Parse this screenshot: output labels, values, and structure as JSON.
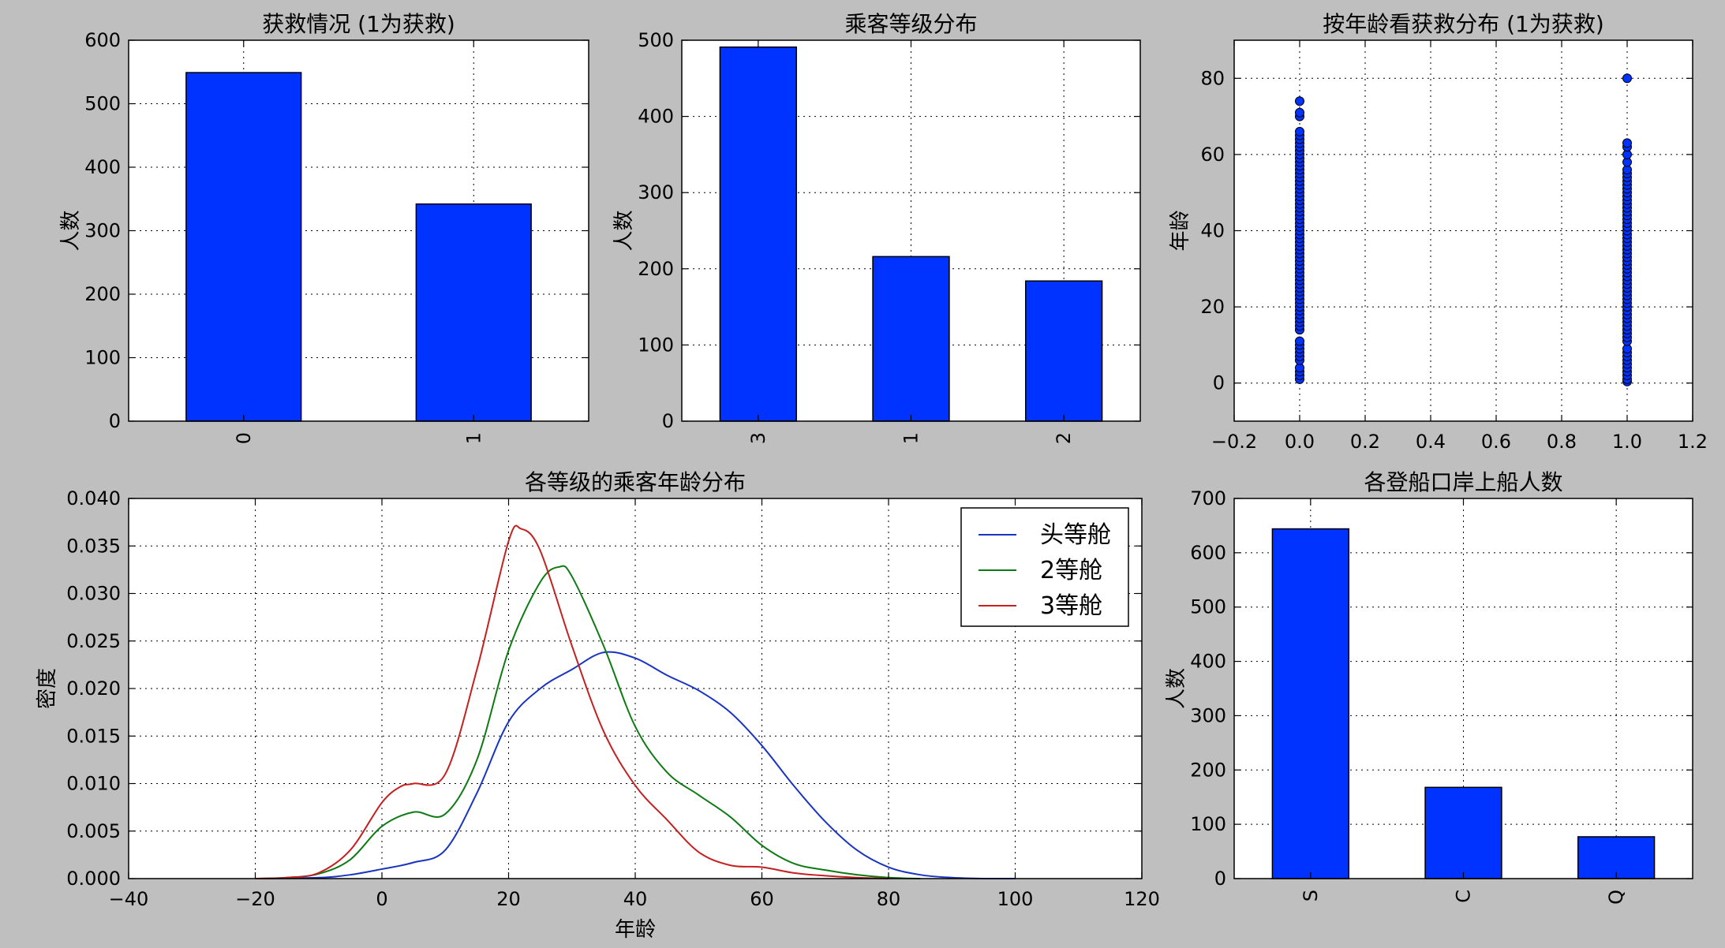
{
  "chart_data": [
    {
      "type": "bar",
      "title": "获救情况 (1为获救)",
      "ylabel": "人数",
      "xlabel": "",
      "categories": [
        "0",
        "1"
      ],
      "values": [
        549,
        342
      ],
      "ylim": [
        0,
        600
      ],
      "yticks": [
        0,
        100,
        200,
        300,
        400,
        500,
        600
      ],
      "grid": true,
      "color": "#0033ff"
    },
    {
      "type": "bar",
      "title": "乘客等级分布",
      "ylabel": "人数",
      "xlabel": "",
      "categories": [
        "3",
        "1",
        "2"
      ],
      "values": [
        491,
        216,
        184
      ],
      "ylim": [
        0,
        500
      ],
      "yticks": [
        0,
        100,
        200,
        300,
        400,
        500
      ],
      "grid": true,
      "color": "#0033ff"
    },
    {
      "type": "scatter",
      "title": "按年龄看获救分布 (1为获救)",
      "ylabel": "年龄",
      "xlabel": "",
      "xlim": [
        -0.2,
        1.2
      ],
      "ylim": [
        -10,
        90
      ],
      "xticks": [
        -0.2,
        0.0,
        0.2,
        0.4,
        0.6,
        0.8,
        1.0,
        1.2
      ],
      "xtick_labels": [
        "−0.2",
        "0.0",
        "0.2",
        "0.4",
        "0.6",
        "0.8",
        "1.0",
        "1.2"
      ],
      "yticks": [
        0,
        20,
        40,
        60,
        80
      ],
      "grid": true,
      "color": "#0033ff",
      "series": [
        {
          "x": 0,
          "y": [
            1,
            2,
            3,
            4,
            6,
            7,
            8,
            9,
            10,
            11,
            14,
            15,
            16,
            17,
            18,
            19,
            20,
            21,
            22,
            23,
            24,
            25,
            26,
            27,
            28,
            29,
            30,
            31,
            32,
            33,
            34,
            35,
            36,
            37,
            38,
            39,
            40,
            41,
            42,
            43,
            44,
            45,
            46,
            47,
            48,
            49,
            50,
            51,
            52,
            53,
            54,
            55,
            56,
            57,
            58,
            59,
            60,
            61,
            62,
            63,
            64,
            65,
            66,
            70,
            71,
            74
          ]
        },
        {
          "x": 1,
          "y": [
            0.4,
            1,
            2,
            3,
            4,
            5,
            6,
            7,
            8,
            9,
            11,
            12,
            13,
            14,
            15,
            16,
            17,
            18,
            19,
            20,
            21,
            22,
            23,
            24,
            25,
            26,
            27,
            28,
            29,
            30,
            31,
            32,
            33,
            34,
            35,
            36,
            37,
            38,
            39,
            40,
            41,
            42,
            43,
            44,
            45,
            46,
            47,
            48,
            49,
            50,
            51,
            52,
            53,
            54,
            55,
            56,
            58,
            60,
            62,
            63,
            80
          ]
        }
      ]
    },
    {
      "type": "line",
      "title": "各等级的乘客年龄分布",
      "xlabel": "年龄",
      "ylabel": "密度",
      "xlim": [
        -40,
        120
      ],
      "ylim": [
        0,
        0.04
      ],
      "xticks": [
        -40,
        -20,
        0,
        20,
        40,
        60,
        80,
        100,
        120
      ],
      "xtick_labels": [
        "−40",
        "−20",
        "0",
        "20",
        "40",
        "60",
        "80",
        "100",
        "120"
      ],
      "yticks": [
        "0.000",
        "0.005",
        "0.010",
        "0.015",
        "0.020",
        "0.025",
        "0.030",
        "0.035",
        "0.040"
      ],
      "grid": true,
      "legend_position": "top-right",
      "series": [
        {
          "name": "头等舱",
          "color": "#1a34c2",
          "x": [
            -20,
            -10,
            -5,
            0,
            5,
            10,
            15,
            20,
            25,
            30,
            35,
            40,
            45,
            50,
            55,
            60,
            65,
            70,
            75,
            80,
            85,
            90,
            95,
            100
          ],
          "y": [
            0,
            0.0001,
            0.0004,
            0.001,
            0.0017,
            0.003,
            0.009,
            0.0165,
            0.02,
            0.022,
            0.0238,
            0.0232,
            0.0214,
            0.0198,
            0.0175,
            0.014,
            0.0098,
            0.006,
            0.003,
            0.0012,
            0.0004,
            0.0001,
            0,
            0
          ]
        },
        {
          "name": "2等舱",
          "color": "#0e7a14",
          "x": [
            -20,
            -15,
            -10,
            -5,
            0,
            5,
            10,
            15,
            20,
            25,
            28,
            30,
            35,
            40,
            45,
            50,
            55,
            60,
            65,
            70,
            75,
            80,
            85
          ],
          "y": [
            0,
            0.0001,
            0.0005,
            0.002,
            0.0055,
            0.007,
            0.0068,
            0.0125,
            0.024,
            0.0312,
            0.0328,
            0.0318,
            0.0245,
            0.016,
            0.0112,
            0.0088,
            0.0065,
            0.0035,
            0.0016,
            0.0009,
            0.0004,
            0.0001,
            0
          ]
        },
        {
          "name": "3等舱",
          "color": "#c42020",
          "x": [
            -20,
            -15,
            -10,
            -5,
            0,
            3,
            5,
            10,
            15,
            20,
            22,
            25,
            30,
            35,
            40,
            45,
            50,
            55,
            60,
            65,
            70,
            75,
            80
          ],
          "y": [
            0,
            0.0001,
            0.0006,
            0.003,
            0.008,
            0.0097,
            0.01,
            0.011,
            0.022,
            0.0355,
            0.0368,
            0.0345,
            0.0245,
            0.0155,
            0.0098,
            0.0062,
            0.0028,
            0.0014,
            0.0012,
            0.0006,
            0.0003,
            0.0001,
            0
          ]
        }
      ]
    },
    {
      "type": "bar",
      "title": "各登船口岸上船人数",
      "ylabel": "人数",
      "xlabel": "",
      "categories": [
        "S",
        "C",
        "Q"
      ],
      "values": [
        644,
        168,
        77
      ],
      "ylim": [
        0,
        700
      ],
      "yticks": [
        0,
        100,
        200,
        300,
        400,
        500,
        600,
        700
      ],
      "grid": true,
      "color": "#0033ff"
    }
  ]
}
